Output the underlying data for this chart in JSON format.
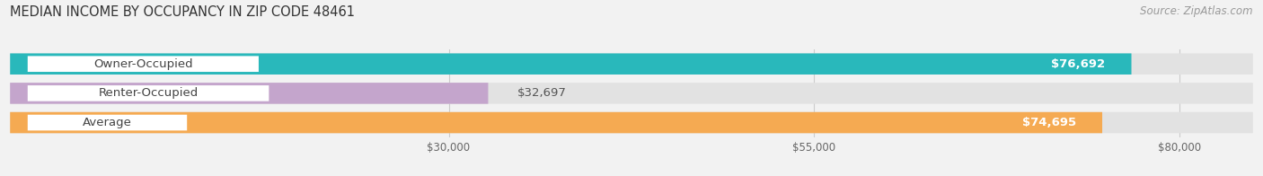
{
  "title": "MEDIAN INCOME BY OCCUPANCY IN ZIP CODE 48461",
  "source": "Source: ZipAtlas.com",
  "categories": [
    "Owner-Occupied",
    "Renter-Occupied",
    "Average"
  ],
  "values": [
    76692,
    32697,
    74695
  ],
  "bar_colors": [
    "#29b8bb",
    "#c4a5cc",
    "#f5aa52"
  ],
  "value_labels": [
    "$76,692",
    "$32,697",
    "$74,695"
  ],
  "x_ticks": [
    30000,
    55000,
    80000
  ],
  "x_tick_labels": [
    "$30,000",
    "$55,000",
    "$80,000"
  ],
  "xlim_max": 85000,
  "background_color": "#f2f2f2",
  "bar_bg_color": "#e2e2e2",
  "separator_color": "#ffffff",
  "label_font_size": 9.5,
  "title_font_size": 10.5,
  "source_font_size": 8.5,
  "bar_height": 0.72,
  "pill_color": "#ffffff",
  "pill_text_color": "#444444",
  "value_text_color_inside": "#ffffff",
  "value_text_color_outside": "#555555",
  "grid_color": "#cccccc"
}
